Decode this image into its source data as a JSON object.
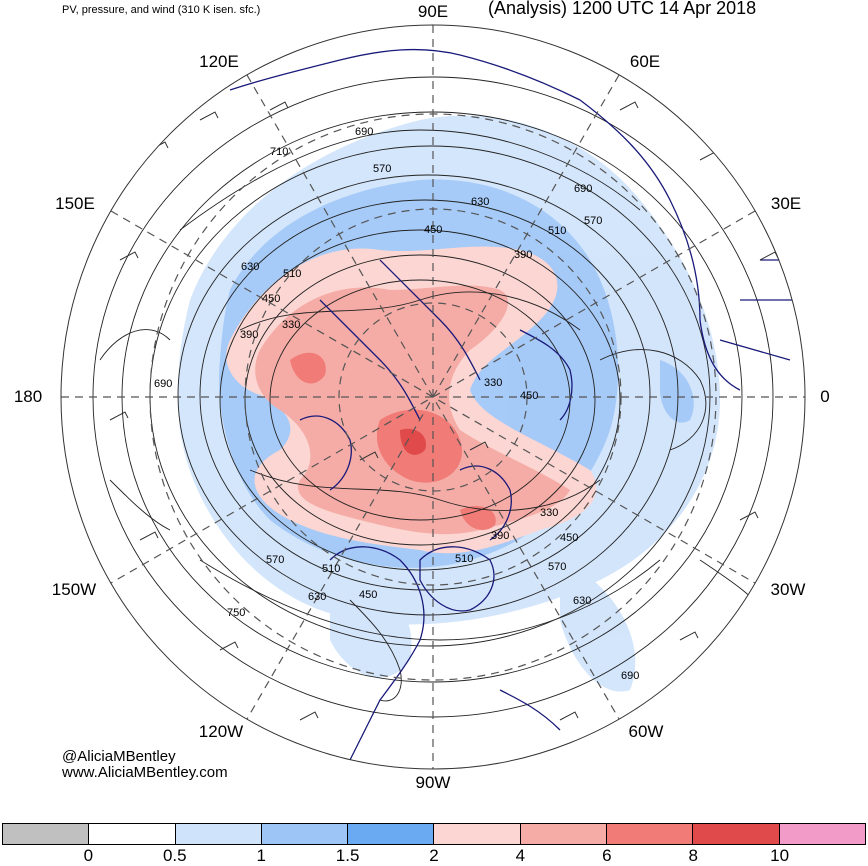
{
  "header": {
    "subtitle": "PV, pressure, and wind (310 K isen. sfc.)",
    "title": "(Analysis) 1200 UTC 14 Apr 2018"
  },
  "longitudes": [
    {
      "label": "90E"
    },
    {
      "label": "60E"
    },
    {
      "label": "30E"
    },
    {
      "label": "0"
    },
    {
      "label": "30W"
    },
    {
      "label": "60W"
    },
    {
      "label": "90W"
    },
    {
      "label": "120W"
    },
    {
      "label": "150W"
    },
    {
      "label": "180"
    },
    {
      "label": "150E"
    },
    {
      "label": "120E"
    }
  ],
  "contour_labels": [
    {
      "value": "690"
    },
    {
      "value": "570"
    },
    {
      "value": "630"
    },
    {
      "value": "690"
    },
    {
      "value": "570"
    },
    {
      "value": "510"
    },
    {
      "value": "390"
    },
    {
      "value": "450"
    },
    {
      "value": "630"
    },
    {
      "value": "510"
    },
    {
      "value": "450"
    },
    {
      "value": "330"
    },
    {
      "value": "390"
    },
    {
      "value": "690"
    },
    {
      "value": "330"
    },
    {
      "value": "450"
    },
    {
      "value": "330"
    },
    {
      "value": "450"
    },
    {
      "value": "390"
    },
    {
      "value": "510"
    },
    {
      "value": "570"
    },
    {
      "value": "630"
    },
    {
      "value": "570"
    },
    {
      "value": "510"
    },
    {
      "value": "450"
    },
    {
      "value": "630"
    },
    {
      "value": "750"
    },
    {
      "value": "690"
    },
    {
      "value": "710"
    }
  ],
  "credit": {
    "handle": "@AliciaMBentley",
    "site": "www.AliciaMBentley.com"
  },
  "colorbar": {
    "colors": [
      "#c0c0c0",
      "#ffffff",
      "#cfe3fb",
      "#9dc6f7",
      "#6aaaf2",
      "#fbd6d2",
      "#f6aca6",
      "#f07b77",
      "#e04a4a",
      "#f39bc8"
    ],
    "ticks": [
      "0",
      "0.5",
      "1",
      "1.5",
      "2",
      "4",
      "6",
      "8",
      "10"
    ]
  }
}
